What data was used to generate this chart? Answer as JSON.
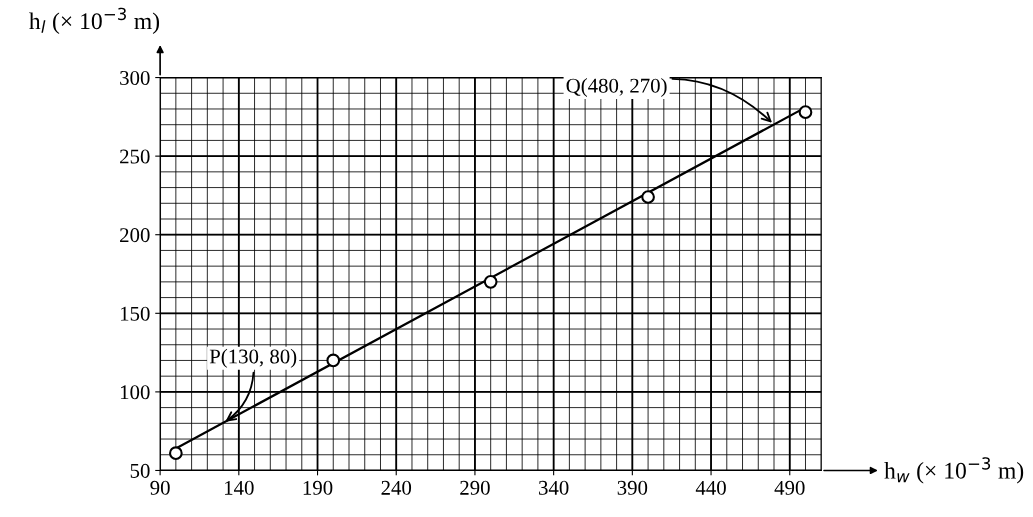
{
  "chart_data": {
    "type": "scatter",
    "xlabel": "h$_{w}$ (× 10$^{−3}$ m)",
    "ylabel": "h$_{l}$ (× 10$^{−3}$ m)",
    "xlim": [
      90,
      510
    ],
    "ylim": [
      50,
      300
    ],
    "xticks": [
      90,
      140,
      190,
      240,
      290,
      340,
      390,
      440,
      490
    ],
    "yticks": [
      50,
      100,
      150,
      200,
      250,
      300
    ],
    "grid": true,
    "series": [
      {
        "marker": "circle",
        "color": "#000000",
        "x": [
          100,
          200,
          300,
          400,
          500
        ],
        "values": [
          61,
          120,
          170,
          224,
          278
        ]
      },
      {
        "type": "line",
        "color": "#000000",
        "x": [
          100,
          500
        ],
        "values": [
          64,
          281
        ]
      }
    ],
    "annotations": [
      {
        "text": "P(130, 80)",
        "x": 130,
        "y": 80
      },
      {
        "text": "Q(480, 270)",
        "x": 480,
        "y": 270
      }
    ]
  }
}
